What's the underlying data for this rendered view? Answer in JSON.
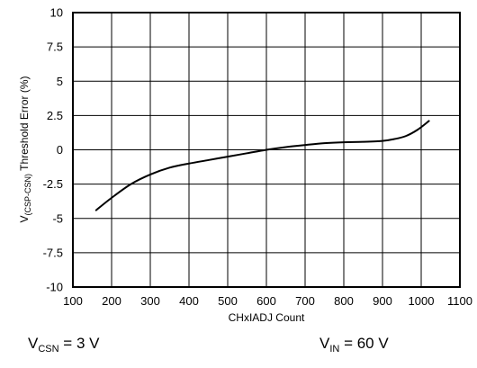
{
  "chart_data": {
    "type": "line",
    "xlabel": "CHxIADJ Count",
    "ylabel": {
      "prefix": "V",
      "subscript": "(CSP-CSN)",
      "suffix": " Threshold Error (%)"
    },
    "xlim": [
      100,
      1100
    ],
    "ylim": [
      -10,
      10
    ],
    "x_ticks": [
      100,
      200,
      300,
      400,
      500,
      600,
      700,
      800,
      900,
      1000,
      1100
    ],
    "y_ticks": [
      -10,
      -7.5,
      -5,
      -2.5,
      0,
      2.5,
      5,
      7.5,
      10
    ],
    "grid": true,
    "series": [
      {
        "color": "#000000",
        "x": [
          160,
          200,
          250,
          300,
          350,
          400,
          450,
          500,
          550,
          600,
          650,
          700,
          750,
          800,
          850,
          900,
          930,
          960,
          990,
          1020
        ],
        "y": [
          -4.4,
          -3.5,
          -2.5,
          -1.8,
          -1.3,
          -1.0,
          -0.75,
          -0.5,
          -0.25,
          0.0,
          0.2,
          0.35,
          0.48,
          0.55,
          0.58,
          0.65,
          0.78,
          1.0,
          1.45,
          2.1
        ]
      }
    ]
  },
  "conditions": [
    {
      "prefix": "V",
      "subscript": "CSN",
      "suffix": " = 3 V"
    },
    {
      "prefix": "V",
      "subscript": "IN",
      "suffix": " = 60 V"
    }
  ]
}
